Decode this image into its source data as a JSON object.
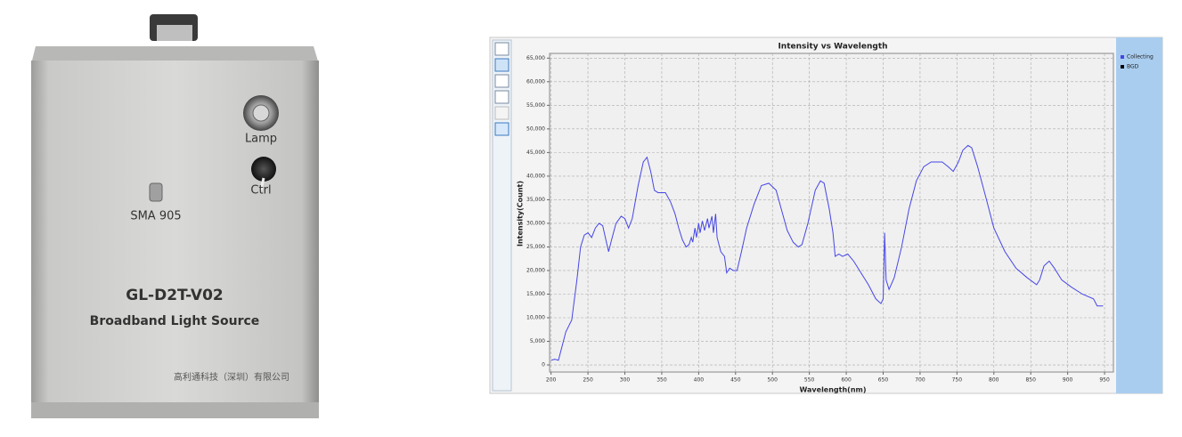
{
  "device": {
    "lamp_label": "Lamp",
    "ctrl_label": "Ctrl",
    "connector_label": "SMA 905",
    "model": "GL-D2T-V02",
    "product_name": "Broadband Light Source",
    "manufacturer": "高利通科技（深圳）有限公司"
  },
  "chart_data": {
    "type": "line",
    "title": "Intensity vs Wavelength",
    "x_label": "Wavelength(nm)",
    "y_label": "Intensity(Count)",
    "x": [
      200,
      205,
      210,
      215,
      220,
      228,
      235,
      240,
      245,
      250,
      255,
      260,
      265,
      270,
      275,
      278,
      282,
      288,
      295,
      300,
      305,
      310,
      318,
      325,
      330,
      335,
      340,
      345,
      355,
      362,
      368,
      373,
      378,
      383,
      387,
      390,
      392,
      395,
      397,
      400,
      402,
      405,
      408,
      412,
      414,
      418,
      420,
      423,
      425,
      430,
      435,
      438,
      442,
      447,
      452,
      458,
      465,
      475,
      485,
      495,
      505,
      512,
      520,
      528,
      535,
      540,
      548,
      558,
      565,
      570,
      577,
      582,
      585,
      590,
      595,
      602,
      610,
      620,
      630,
      640,
      647,
      650,
      652,
      654,
      658,
      665,
      675,
      685,
      695,
      705,
      715,
      730,
      738,
      745,
      752,
      758,
      765,
      770,
      778,
      790,
      800,
      815,
      830,
      845,
      858,
      862,
      868,
      875,
      882,
      892,
      905,
      920,
      935,
      940,
      948
    ],
    "series": [
      {
        "name": "Collecting",
        "color": "#4646e6",
        "values": [
          1000,
          1200,
          1000,
          4000,
          7000,
          9500,
          18000,
          25000,
          27500,
          28000,
          27000,
          29000,
          30000,
          29500,
          26000,
          24000,
          26500,
          30000,
          31500,
          31000,
          29000,
          31000,
          38000,
          43000,
          44000,
          41000,
          37000,
          36500,
          36500,
          34500,
          32000,
          29000,
          26500,
          25000,
          25500,
          27000,
          26000,
          29000,
          27000,
          30000,
          28000,
          30500,
          28500,
          31000,
          29000,
          31500,
          28000,
          32000,
          27000,
          24000,
          23000,
          19500,
          20500,
          20000,
          20000,
          24000,
          29000,
          34000,
          38000,
          38500,
          37000,
          33000,
          28500,
          26000,
          25000,
          25500,
          30000,
          37000,
          39000,
          38500,
          33000,
          28000,
          23000,
          23500,
          23000,
          23500,
          22000,
          19500,
          17000,
          14000,
          13000,
          14000,
          28000,
          18000,
          16000,
          18500,
          25000,
          33000,
          39000,
          42000,
          43000,
          43000,
          42000,
          41000,
          43000,
          45500,
          46500,
          46000,
          42000,
          35000,
          29000,
          24000,
          20500,
          18500,
          17000,
          18000,
          21000,
          22000,
          20500,
          18000,
          16500,
          15000,
          14000,
          12500,
          12500
        ]
      }
    ],
    "extra_legend": [
      {
        "name": "BGD",
        "color": "#000000"
      }
    ],
    "xlim": [
      198,
      962
    ],
    "ylim": [
      -1500,
      66000
    ],
    "xticks": [
      200,
      250,
      300,
      350,
      400,
      450,
      500,
      550,
      600,
      650,
      700,
      750,
      800,
      850,
      900,
      950
    ],
    "yticks": [
      0,
      {
        "value": 5000,
        "label": "5,000"
      },
      {
        "value": 10000,
        "label": "10,000"
      },
      {
        "value": 15000,
        "label": "15,000"
      },
      {
        "value": 20000,
        "label": "20,000"
      },
      {
        "value": 25000,
        "label": "25,000"
      },
      {
        "value": 30000,
        "label": "30,000"
      },
      {
        "value": 35000,
        "label": "35,000"
      },
      {
        "value": 40000,
        "label": "40,000"
      },
      {
        "value": 45000,
        "label": "45,000"
      },
      {
        "value": 50000,
        "label": "50,000"
      },
      {
        "value": 55000,
        "label": "55,000"
      },
      {
        "value": 60000,
        "label": "60,000"
      },
      {
        "value": 65000,
        "label": "65,000"
      }
    ],
    "grid": true,
    "legend_position": "right"
  }
}
